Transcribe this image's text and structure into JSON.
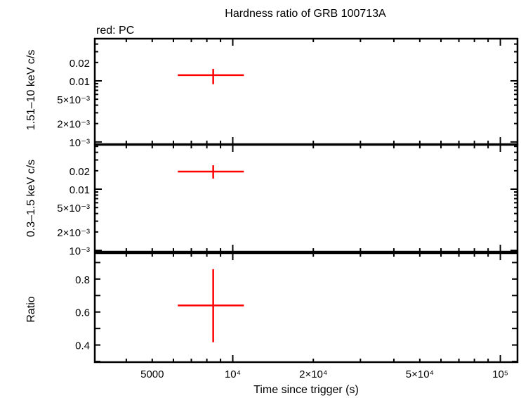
{
  "chart_data": {
    "title": "Hardness ratio of GRB 100713A",
    "legend_note": "red: PC",
    "xlabel": "Time since trigger (s)",
    "x_scale": "log",
    "xlim": [
      3050,
      115900
    ],
    "x_ticks": [
      {
        "value": 5000,
        "label": "5000"
      },
      {
        "value": 10000,
        "label": "10⁴"
      },
      {
        "value": 20000,
        "label": "2×10⁴"
      },
      {
        "value": 50000,
        "label": "5×10⁴"
      },
      {
        "value": 100000,
        "label": "10⁵"
      }
    ],
    "series_color": "#ff0000",
    "panels": [
      {
        "type": "scatter",
        "ylabel": "1.51–10 keV c/s",
        "y_scale": "log",
        "ylim": [
          0.00092,
          0.049
        ],
        "y_ticks": [
          {
            "value": 0.02,
            "label": "0.02"
          },
          {
            "value": 0.01,
            "label": "0.01"
          },
          {
            "value": 0.005,
            "label": "5×10⁻³"
          },
          {
            "value": 0.002,
            "label": "2×10⁻³"
          },
          {
            "value": 0.001,
            "label": "10⁻³"
          }
        ],
        "points": [
          {
            "x": 8450,
            "x_lo": 6230,
            "x_hi": 11000,
            "y": 0.0124,
            "y_lo": 0.0088,
            "y_hi": 0.0157
          }
        ]
      },
      {
        "type": "scatter",
        "ylabel": "0.3–1.5 keV c/s",
        "y_scale": "log",
        "ylim": [
          0.00095,
          0.053
        ],
        "y_ticks": [
          {
            "value": 0.02,
            "label": "0.02"
          },
          {
            "value": 0.01,
            "label": "0.01"
          },
          {
            "value": 0.005,
            "label": "5×10⁻³"
          },
          {
            "value": 0.002,
            "label": "2×10⁻³"
          },
          {
            "value": 0.001,
            "label": "10⁻³"
          }
        ],
        "points": [
          {
            "x": 8450,
            "x_lo": 6230,
            "x_hi": 11000,
            "y": 0.0194,
            "y_lo": 0.0149,
            "y_hi": 0.0246
          }
        ]
      },
      {
        "type": "scatter",
        "ylabel": "Ratio",
        "y_scale": "linear",
        "ylim": [
          0.296,
          0.957
        ],
        "y_ticks": [
          {
            "value": 0.8,
            "label": "0.8"
          },
          {
            "value": 0.6,
            "label": "0.6"
          },
          {
            "value": 0.4,
            "label": "0.4"
          }
        ],
        "y_minor": [
          0.3,
          0.5,
          0.7,
          0.9
        ],
        "points": [
          {
            "x": 8450,
            "x_lo": 6230,
            "x_hi": 11000,
            "y": 0.64,
            "y_lo": 0.417,
            "y_hi": 0.86
          }
        ]
      }
    ]
  }
}
